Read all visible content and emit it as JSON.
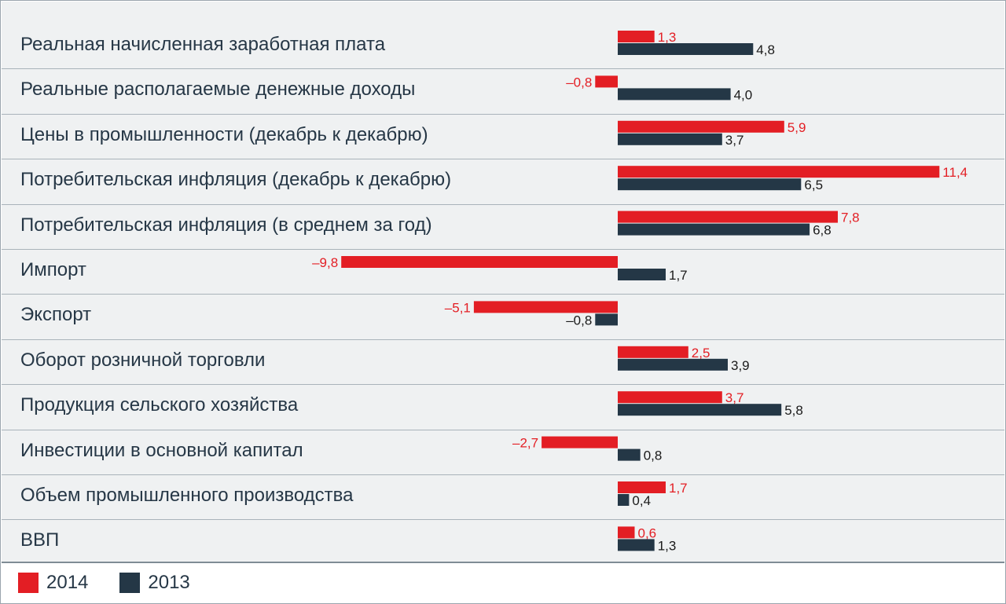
{
  "colors": {
    "series_2014": "#e31e24",
    "series_2013": "#243746",
    "label_2014": "#e31e24",
    "label_2013": "#1a1a1a"
  },
  "chart_data": {
    "type": "bar",
    "orientation": "horizontal",
    "categories": [
      "Реальная начисленная заработная плата",
      "Реальные располагаемые денежные доходы",
      "Цены в промышленности (декабрь к декабрю)",
      "Потребительская инфляция (декабрь к декабрю)",
      "Потребительская инфляция (в среднем за год)",
      "Импорт",
      "Экспорт",
      "Оборот розничной торговли",
      "Продукция сельского хозяйства",
      "Инвестиции в основной капитал",
      "Объем промышленного производства",
      "ВВП"
    ],
    "series": [
      {
        "name": "2014",
        "values": [
          1.3,
          -0.8,
          5.9,
          11.4,
          7.8,
          -9.8,
          -5.1,
          2.5,
          3.7,
          -2.7,
          1.7,
          0.6
        ],
        "labels": [
          "1,3",
          "–0,8",
          "5,9",
          "11,4",
          "7,8",
          "–9,8",
          "–5,1",
          "2,5",
          "3,7",
          "–2,7",
          "1,7",
          "0,6"
        ]
      },
      {
        "name": "2013",
        "values": [
          4.8,
          4.0,
          3.7,
          6.5,
          6.8,
          1.7,
          -0.8,
          3.9,
          5.8,
          0.8,
          0.4,
          1.3
        ],
        "labels": [
          "4,8",
          "4,0",
          "3,7",
          "6,5",
          "6,8",
          "1,7",
          "–0,8",
          "3,9",
          "5,8",
          "0,8",
          "0,4",
          "1,3"
        ]
      }
    ],
    "legend": [
      {
        "name": "2014",
        "color": "#e31e24"
      },
      {
        "name": "2013",
        "color": "#243746"
      }
    ],
    "legend_position": "bottom-left",
    "gridlines": false
  }
}
